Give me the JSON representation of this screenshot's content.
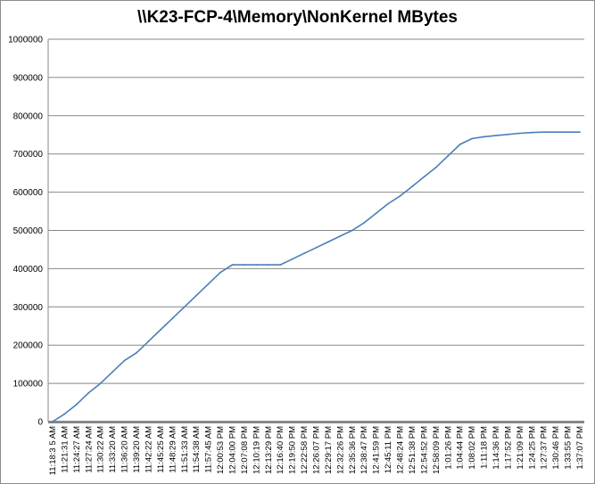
{
  "chart_data": {
    "type": "line",
    "title": "\\\\K23-FCP-4\\Memory\\NonKernel MBytes",
    "xlabel": "",
    "ylabel": "",
    "ylim": [
      0,
      1000000
    ],
    "yticks": [
      0,
      100000,
      200000,
      300000,
      400000,
      500000,
      600000,
      700000,
      800000,
      900000,
      1000000
    ],
    "ytick_labels": [
      "0",
      "100000",
      "200000",
      "300000",
      "400000",
      "500000",
      "600000",
      "700000",
      "800000",
      "900000",
      "1000000"
    ],
    "grid": "horizontal",
    "legend": "none",
    "line_color": "#4a7ebb",
    "grid_color": "#878787",
    "x_tick_labels": [
      "11:18:3 5 AM",
      "11:21:31 AM",
      "11:24:27 AM",
      "11:27:24 AM",
      "11:30:22 AM",
      "11:33:20 AM",
      "11:36:20 AM",
      "11:39:20 AM",
      "11:42:22 AM",
      "11:45:25 AM",
      "11:48:29 AM",
      "11:51:33 AM",
      "11:54:38 AM",
      "11:57:45 AM",
      "12:00:53 PM",
      "12:04:00 PM",
      "12:07:08 PM",
      "12:10:19 PM",
      "12:13:29 PM",
      "12:16:40 PM",
      "12:19:50 PM",
      "12:22:58 PM",
      "12:26:07 PM",
      "12:29:17 PM",
      "12:32:26 PM",
      "12:35:36 PM",
      "12:38:47 PM",
      "12:41:59 PM",
      "12:45:11 PM",
      "12:48:24 PM",
      "12:51:38 PM",
      "12:54:52 PM",
      "12:58:09 PM",
      "1:01:26 PM",
      "1:04:44 PM",
      "1:08:02 PM",
      "1:11:18 PM",
      "1:14:36 PM",
      "1:17:52 PM",
      "1:21:09 PM",
      "1:24:25 PM",
      "1:27:37 PM",
      "1:30:46 PM",
      "1:33:55 PM",
      "1:37:07 PM"
    ],
    "series": [
      {
        "values": [
          0,
          20000,
          45000,
          75000,
          100000,
          130000,
          160000,
          180000,
          210000,
          240000,
          270000,
          300000,
          330000,
          360000,
          390000,
          410000,
          410000,
          410000,
          410000,
          410000,
          425000,
          440000,
          455000,
          470000,
          485000,
          500000,
          520000,
          545000,
          570000,
          590000,
          615000,
          640000,
          665000,
          695000,
          725000,
          740000,
          745000,
          748000,
          751000,
          754000,
          756000,
          757000,
          757000,
          757000,
          757000
        ]
      }
    ]
  }
}
